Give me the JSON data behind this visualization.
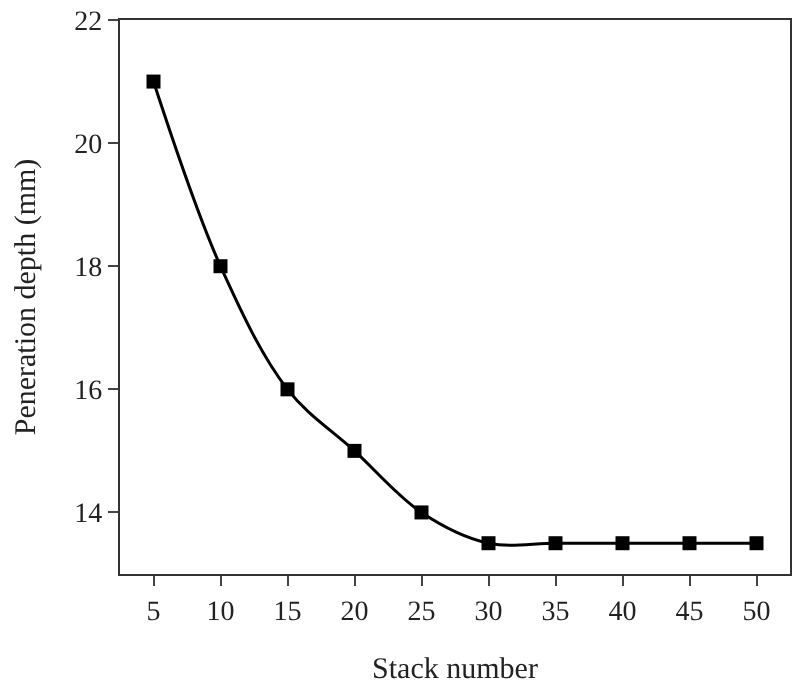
{
  "chart_data": {
    "type": "line",
    "xlabel": "Stack number",
    "ylabel": "Peneration depth (mm)",
    "x": [
      5,
      10,
      15,
      20,
      25,
      30,
      35,
      40,
      45,
      50
    ],
    "series": [
      {
        "color": "#000000",
        "values": [
          21,
          18,
          16,
          15,
          14,
          13.5,
          13.5,
          13.5,
          13.5,
          13.5
        ]
      }
    ],
    "xlim": [
      2.5,
      52.5
    ],
    "xticks": [
      5,
      10,
      15,
      20,
      25,
      30,
      35,
      40,
      45,
      50
    ],
    "ylim": [
      13,
      22
    ],
    "yticks": [
      14,
      16,
      18,
      20,
      22
    ],
    "marker": "square",
    "line_style": "solid",
    "grid": false
  }
}
